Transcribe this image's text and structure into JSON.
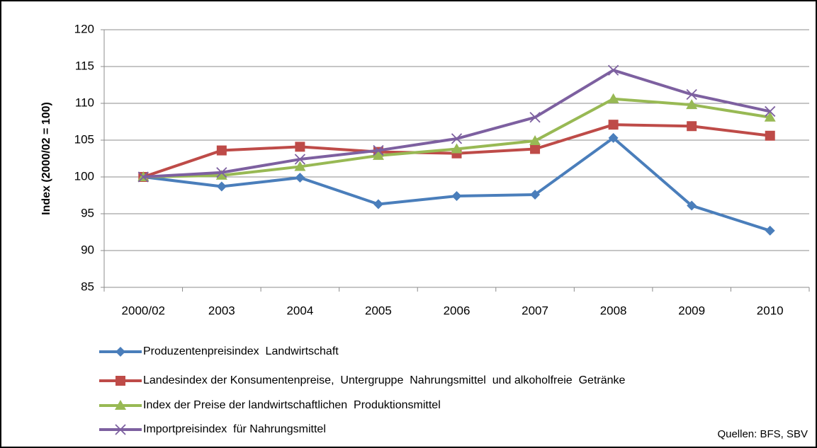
{
  "chart_data": {
    "type": "line",
    "y_label": "Index (2000/02 = 100)",
    "categories": [
      "2000/02",
      "2003",
      "2004",
      "2005",
      "2006",
      "2007",
      "2008",
      "2009",
      "2010"
    ],
    "series": [
      {
        "name": "Produzentenpreisindex  Landwirtschaft",
        "color": "#4a7ebb",
        "marker": "diamond",
        "values": [
          100,
          98.7,
          99.9,
          96.3,
          97.4,
          97.6,
          105.3,
          96.1,
          92.7
        ]
      },
      {
        "name": "Landesindex der Konsumentenpreise,  Untergruppe  Nahrungsmittel  und alkoholfreie  Getränke",
        "color": "#be4b48",
        "marker": "square",
        "values": [
          100,
          103.6,
          104.1,
          103.4,
          103.2,
          103.8,
          107.1,
          106.9,
          105.6
        ]
      },
      {
        "name": "Index der Preise der landwirtschaftlichen  Produktionsmittel",
        "color": "#98b954",
        "marker": "triangle",
        "values": [
          100,
          100.2,
          101.4,
          102.9,
          103.8,
          104.9,
          110.6,
          109.8,
          108.1
        ]
      },
      {
        "name": "Importpreisindex  für Nahrungsmittel",
        "color": "#7d60a0",
        "marker": "x",
        "values": [
          100,
          100.6,
          102.4,
          103.6,
          105.2,
          108.1,
          114.5,
          111.2,
          108.9
        ]
      }
    ],
    "ylim": [
      85,
      120
    ],
    "yticks": [
      85,
      90,
      95,
      100,
      105,
      110,
      115,
      120
    ],
    "grid": true,
    "legend": "bottom",
    "source": "Quellen: BFS, SBV"
  }
}
